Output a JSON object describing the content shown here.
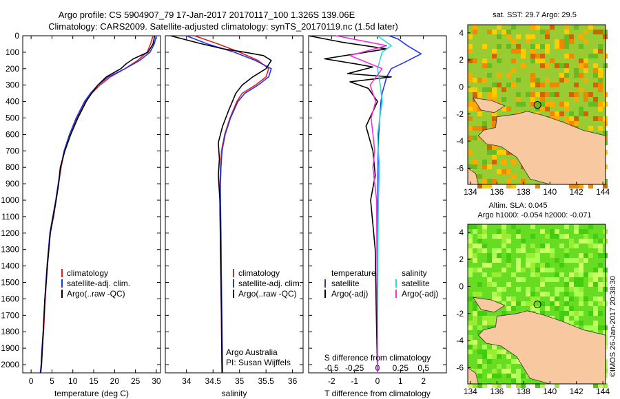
{
  "title_line1": "Argo profile: CS 5904907_79 17-Jan-2017 20170117_100 1.326S 139.06E",
  "title_line2": "Climatology: CARS2009. Satellite-adjusted climatology: synTS_20170119.nc (1.5d later)",
  "footer_credit": "©IMOS 26-Jan-2017 20:38:30",
  "colors": {
    "climatology": "#e02020",
    "satellite": "#2233ee",
    "argo": "#000000",
    "sat_salinity": "#22dddd",
    "argo_salinity": "#ee33dd",
    "land": "#f8c8a0",
    "coast": "#333333"
  },
  "chart_data": [
    {
      "id": "temperature",
      "type": "line",
      "xlabel": "temperature (deg C)",
      "ylabel": "",
      "xlim": [
        -2,
        31
      ],
      "ylim": [
        2050,
        0
      ],
      "xticks": [
        0,
        5,
        10,
        15,
        20,
        25,
        30
      ],
      "yticks": [
        0,
        100,
        200,
        300,
        400,
        500,
        600,
        700,
        800,
        900,
        1000,
        1100,
        1200,
        1300,
        1400,
        1500,
        1600,
        1700,
        1800,
        1900,
        2000
      ],
      "legend": [
        "climatology",
        "satellite-adj. clim.",
        "Argo(..raw -QC)"
      ],
      "legend_position": "lower-middle",
      "series": [
        {
          "name": "climatology",
          "color": "#e02020",
          "x": [
            29.2,
            28.6,
            27.8,
            25.5,
            22.5,
            19.0,
            16.5,
            14.5,
            13.0,
            11.0,
            9.5,
            8.0,
            7.2,
            6.6,
            6.0,
            5.4,
            4.6,
            3.9,
            3.4,
            3.0,
            2.7,
            2.5,
            2.2
          ],
          "y": [
            0,
            50,
            100,
            150,
            200,
            250,
            300,
            350,
            400,
            500,
            600,
            700,
            800,
            900,
            1000,
            1100,
            1200,
            1400,
            1600,
            1800,
            1900,
            2000,
            2050
          ]
        },
        {
          "name": "satellite",
          "color": "#2233ee",
          "x": [
            30.0,
            29.5,
            28.5,
            26.0,
            22.5,
            18.5,
            16.0,
            14.2,
            12.8,
            10.8,
            9.2,
            7.9,
            7.1,
            6.5,
            5.9,
            5.2,
            4.5,
            3.8,
            3.3,
            2.9,
            2.6,
            2.4,
            2.2
          ],
          "y": [
            0,
            50,
            100,
            150,
            200,
            250,
            300,
            350,
            400,
            500,
            600,
            700,
            800,
            900,
            1000,
            1100,
            1200,
            1400,
            1600,
            1800,
            1900,
            2000,
            2050
          ]
        },
        {
          "name": "Argo",
          "color": "#000000",
          "x": [
            29.6,
            29.2,
            28.0,
            24.5,
            22.8,
            21.5,
            18.0,
            16.0,
            14.5,
            13.2,
            11.2,
            9.5,
            8.1,
            7.0,
            6.6,
            6.0,
            5.3,
            4.6,
            3.9,
            3.3,
            2.9,
            2.5,
            2.3
          ],
          "y": [
            0,
            50,
            100,
            140,
            170,
            200,
            250,
            300,
            350,
            400,
            500,
            600,
            700,
            800,
            900,
            1000,
            1100,
            1200,
            1400,
            1600,
            1800,
            2000,
            2050
          ]
        }
      ]
    },
    {
      "id": "salinity",
      "type": "line",
      "xlabel": "salinity",
      "xlim": [
        33.6,
        36.2
      ],
      "ylim": [
        2050,
        0
      ],
      "xticks": [
        34,
        34.5,
        35,
        35.5,
        36
      ],
      "legend": [
        "climatology",
        "satellite-adj. clim.",
        "Argo(..raw -QC)"
      ],
      "legend_position": "lower-middle",
      "annotation": [
        "Argo Australia",
        "PI: Susan Wijffels"
      ],
      "series": [
        {
          "name": "climatology",
          "color": "#e02020",
          "x": [
            34.15,
            34.6,
            35.0,
            35.35,
            35.55,
            35.5,
            35.3,
            35.05,
            34.95,
            34.82,
            34.72,
            34.66,
            34.64,
            34.63,
            34.63,
            34.64,
            34.65,
            34.66,
            34.67
          ],
          "y": [
            0,
            50,
            100,
            150,
            200,
            250,
            300,
            350,
            400,
            500,
            600,
            700,
            800,
            900,
            1000,
            1200,
            1500,
            1800,
            2050
          ]
        },
        {
          "name": "satellite",
          "color": "#2233ee",
          "x": [
            34.0,
            34.4,
            34.9,
            35.3,
            35.6,
            35.55,
            35.35,
            35.1,
            34.97,
            34.83,
            34.73,
            34.67,
            34.65,
            34.64,
            34.64,
            34.65,
            34.66,
            34.67,
            34.68
          ],
          "y": [
            0,
            50,
            100,
            150,
            200,
            250,
            300,
            350,
            400,
            500,
            600,
            700,
            800,
            900,
            1000,
            1200,
            1500,
            1800,
            2050
          ]
        },
        {
          "name": "Argo",
          "color": "#000000",
          "x": [
            33.7,
            34.3,
            34.7,
            35.1,
            35.45,
            35.6,
            35.5,
            35.25,
            35.05,
            34.93,
            34.8,
            34.68,
            34.6,
            34.62,
            34.6,
            34.63,
            34.64,
            34.66,
            34.67
          ],
          "y": [
            0,
            50,
            80,
            100,
            120,
            150,
            200,
            250,
            300,
            350,
            450,
            550,
            650,
            750,
            850,
            1000,
            1300,
            1700,
            2050
          ]
        }
      ]
    },
    {
      "id": "difference",
      "type": "line",
      "xlabel": "T difference from climatology",
      "x2label": "S difference from climatology",
      "xlim": [
        -3,
        3
      ],
      "x2lim": [
        -0.75,
        0.75
      ],
      "ylim": [
        2050,
        0
      ],
      "xticks": [
        -2,
        -1,
        0,
        1,
        2
      ],
      "x2ticks": [
        -0.5,
        -0.25,
        0,
        0.25,
        0.5
      ],
      "legend": [
        "satellite",
        "Argo(-adj)",
        "satellite",
        "Argo(-adj)"
      ],
      "legend_headers": [
        "temperature",
        "salinity"
      ],
      "series": [
        {
          "name": "T satellite",
          "color": "#2233ee",
          "x": [
            0.5,
            0.9,
            1.3,
            1.9,
            1.2,
            0.6,
            0.4,
            0.3,
            0.2,
            0.15,
            0.1,
            0.05,
            0.03,
            0.02,
            0.01,
            0.0,
            0.0
          ],
          "y": [
            0,
            20,
            60,
            110,
            160,
            200,
            250,
            300,
            350,
            400,
            500,
            600,
            700,
            800,
            1000,
            1500,
            2050
          ]
        },
        {
          "name": "T Argo(-adj)",
          "color": "#000000",
          "x": [
            -3.0,
            -1.5,
            0.4,
            -2.3,
            -1.0,
            -0.2,
            -1.3,
            0.6,
            -1.2,
            -0.4,
            0.0,
            -0.5,
            -0.2,
            -0.1,
            -0.3,
            -0.1,
            -0.05,
            0.0
          ],
          "y": [
            0,
            40,
            80,
            140,
            170,
            190,
            230,
            250,
            280,
            320,
            400,
            550,
            700,
            850,
            1000,
            1300,
            1700,
            2050
          ]
        },
        {
          "name": "S satellite",
          "color": "#22dddd",
          "x": [
            0.0,
            0.15,
            0.05,
            0.0,
            0.03,
            0.05,
            0.0,
            0.02,
            0.01,
            0.0,
            0.0
          ],
          "y": [
            0,
            60,
            100,
            200,
            300,
            400,
            600,
            800,
            1000,
            1500,
            2050
          ]
        },
        {
          "name": "S Argo(-adj)",
          "color": "#ee33dd",
          "x": [
            -0.45,
            0.1,
            -0.3,
            0.05,
            -0.08,
            -0.02,
            -0.07,
            -0.03,
            -0.05,
            -0.01,
            0.0
          ],
          "y": [
            0,
            60,
            120,
            200,
            300,
            400,
            500,
            700,
            800,
            1000,
            2050
          ]
        }
      ]
    },
    {
      "id": "sst_map",
      "type": "heatmap",
      "title": "sat. SST: 29.7 Argo: 29.5",
      "xticks": [
        134,
        136,
        138,
        140,
        142,
        144
      ],
      "yticks": [
        4,
        2,
        0,
        -2,
        -4,
        -6
      ],
      "xlim": [
        133.8,
        144.2
      ],
      "ylim": [
        -7.2,
        4.6
      ],
      "argo_position": {
        "lon": 139.06,
        "lat": -1.326
      }
    },
    {
      "id": "sla_map",
      "type": "heatmap",
      "title_line1": "Altim. SLA: 0.045",
      "title_line2": "Argo h1000: -0.054 h2000: -0.071",
      "xticks": [
        134,
        136,
        138,
        140,
        142,
        144
      ],
      "yticks": [
        4,
        2,
        0,
        -2,
        -4,
        -6
      ],
      "xlim": [
        133.8,
        144.2
      ],
      "ylim": [
        -7.2,
        4.6
      ],
      "argo_position": {
        "lon": 139.06,
        "lat": -1.326
      }
    }
  ]
}
